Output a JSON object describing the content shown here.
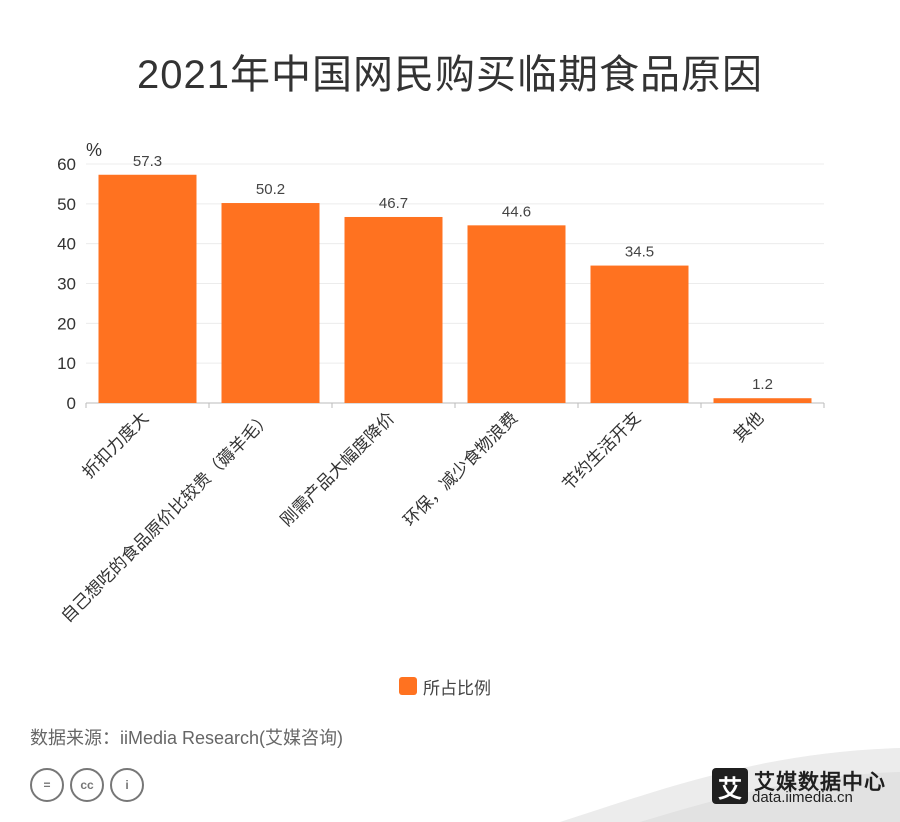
{
  "title": "2021年中国网民购买临期食品原因",
  "chart_data": {
    "type": "bar",
    "categories": [
      "折扣力度大",
      "自己想吃的食品原价比较贵（薅羊毛）",
      "刚需产品大幅度降价",
      "环保，减少食物浪费",
      "节约生活开支",
      "其他"
    ],
    "series": [
      {
        "name": "所占比例",
        "values": [
          57.3,
          50.2,
          46.7,
          44.6,
          34.5,
          1.2
        ]
      }
    ],
    "ylabel": "%",
    "ylim": [
      0,
      60
    ],
    "yticks": [
      0,
      10,
      20,
      30,
      40,
      50,
      60
    ],
    "grid": true,
    "legend_position": "bottom",
    "bar_color": "#FF7220"
  },
  "legend": {
    "label": "所占比例"
  },
  "source": "数据来源：iiMedia Research(艾媒咨询)",
  "license_icons": [
    "=",
    "cc",
    "i"
  ],
  "brand": {
    "logo_char": "艾",
    "name": "艾媒数据中心",
    "url": "data.iimedia.cn"
  }
}
